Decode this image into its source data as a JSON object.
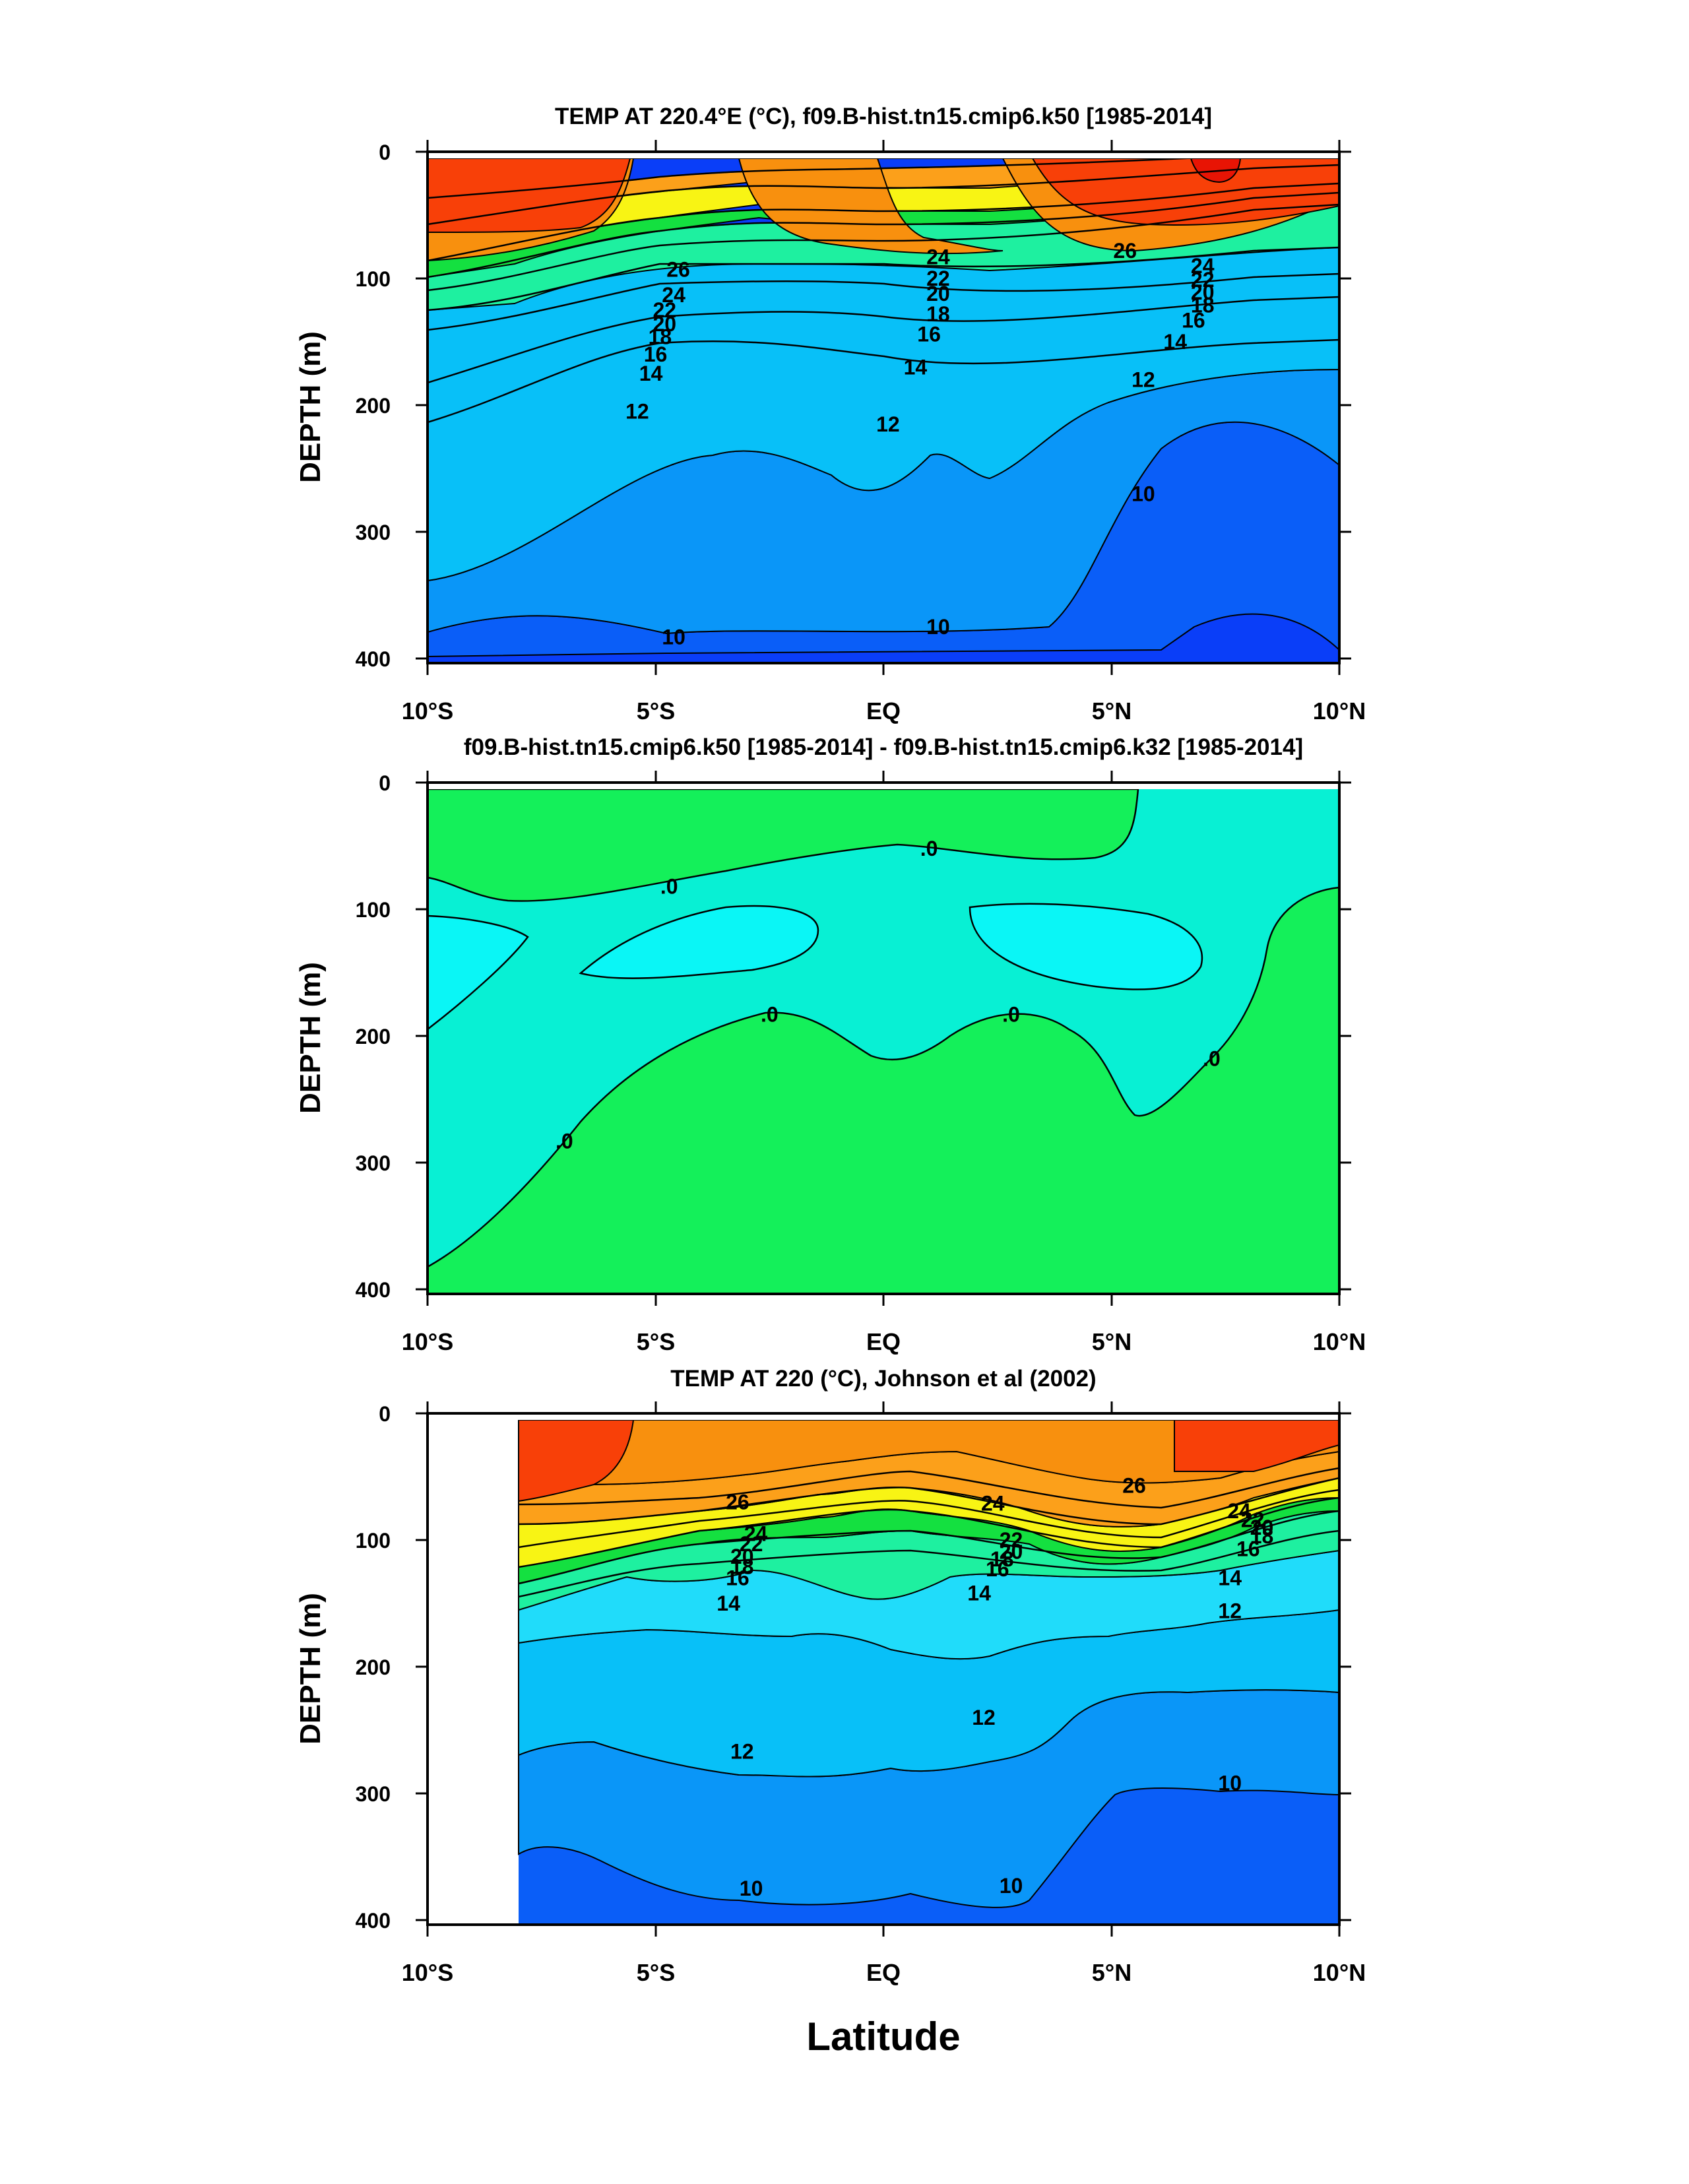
{
  "figure": {
    "xlabel": "Latitude",
    "colors": {
      "c_le10": "#0a3ef8",
      "c_10": "#0a5ef8",
      "c_11": "#0a96f8",
      "c_12": "#08c0f8",
      "c_13": "#20dcfa",
      "c_14": "#4ef0f0",
      "c_16": "#1ef0a0",
      "c_18": "#14e040",
      "c_20": "#c0f020",
      "c_22": "#f8f414",
      "c_23": "#fcd20e",
      "c_24": "#fca01a",
      "c_26": "#f8900e",
      "c_27": "#f86e0a",
      "c_28": "#f84008",
      "c_29": "#e81404",
      "diff_pos": "#14f05a",
      "diff_neg": "#08f0d4",
      "diff_neg2": "#0af6f6"
    }
  },
  "chart_data": [
    {
      "type": "contour",
      "title": "TEMP AT 220.4°E (°C), f09.B-hist.tn15.cmip6.k50 [1985-2014]",
      "ylabel": "DEPTH (m)",
      "xlabel": "",
      "x_ticks": [
        "10°S",
        "5°S",
        "EQ",
        "5°N",
        "10°N"
      ],
      "y_ticks": [
        "0",
        "100",
        "200",
        "300",
        "400"
      ],
      "xlim": [
        -10,
        10
      ],
      "ylim": [
        400,
        0
      ],
      "contour_labels": [
        {
          "text": "26",
          "lat": -4.5,
          "depth": 93
        },
        {
          "text": "24",
          "lat": -4.6,
          "depth": 113
        },
        {
          "text": "22",
          "lat": -4.8,
          "depth": 125
        },
        {
          "text": "20",
          "lat": -4.8,
          "depth": 136
        },
        {
          "text": "18",
          "lat": -4.9,
          "depth": 146
        },
        {
          "text": "16",
          "lat": -5.0,
          "depth": 160
        },
        {
          "text": "14",
          "lat": -5.1,
          "depth": 175
        },
        {
          "text": "12",
          "lat": -5.4,
          "depth": 205
        },
        {
          "text": "24",
          "lat": 1.2,
          "depth": 83
        },
        {
          "text": "22",
          "lat": 1.2,
          "depth": 100
        },
        {
          "text": "20",
          "lat": 1.2,
          "depth": 112
        },
        {
          "text": "18",
          "lat": 1.2,
          "depth": 128
        },
        {
          "text": "16",
          "lat": 1.0,
          "depth": 144
        },
        {
          "text": "14",
          "lat": 0.7,
          "depth": 170
        },
        {
          "text": "12",
          "lat": 0.1,
          "depth": 215
        },
        {
          "text": "26",
          "lat": 5.3,
          "depth": 78
        },
        {
          "text": "24",
          "lat": 7.0,
          "depth": 90
        },
        {
          "text": "22",
          "lat": 7.0,
          "depth": 101
        },
        {
          "text": "20",
          "lat": 7.0,
          "depth": 111
        },
        {
          "text": "18",
          "lat": 7.0,
          "depth": 121
        },
        {
          "text": "16",
          "lat": 6.8,
          "depth": 133
        },
        {
          "text": "14",
          "lat": 6.4,
          "depth": 150
        },
        {
          "text": "12",
          "lat": 5.7,
          "depth": 180
        },
        {
          "text": "10",
          "lat": 5.7,
          "depth": 270
        },
        {
          "text": "10",
          "lat": -4.6,
          "depth": 383
        },
        {
          "text": "10",
          "lat": 1.2,
          "depth": 375
        }
      ]
    },
    {
      "type": "contour",
      "title": "f09.B-hist.tn15.cmip6.k50 [1985-2014] - f09.B-hist.tn15.cmip6.k32 [1985-2014]",
      "ylabel": "DEPTH (m)",
      "xlabel": "",
      "x_ticks": [
        "10°S",
        "5°S",
        "EQ",
        "5°N",
        "10°N"
      ],
      "y_ticks": [
        "0",
        "100",
        "200",
        "300",
        "400"
      ],
      "xlim": [
        -10,
        10
      ],
      "ylim": [
        400,
        0
      ],
      "contour_labels": [
        {
          "text": ".0",
          "lat": 1.0,
          "depth": 52
        },
        {
          "text": ".0",
          "lat": -4.7,
          "depth": 82
        },
        {
          "text": ".0",
          "lat": -2.5,
          "depth": 183
        },
        {
          "text": ".0",
          "lat": 2.8,
          "depth": 183
        },
        {
          "text": ".0",
          "lat": 7.2,
          "depth": 218
        },
        {
          "text": ".0",
          "lat": -7.0,
          "depth": 283
        }
      ]
    },
    {
      "type": "contour",
      "title": "TEMP AT 220 (°C), Johnson et al (2002)",
      "ylabel": "DEPTH (m)",
      "xlabel": "Latitude",
      "x_ticks": [
        "10°S",
        "5°S",
        "EQ",
        "5°N",
        "10°N"
      ],
      "y_ticks": [
        "0",
        "100",
        "200",
        "300",
        "400"
      ],
      "xlim": [
        -10,
        10
      ],
      "ylim": [
        400,
        0
      ],
      "contour_labels": [
        {
          "text": "26",
          "lat": -3.2,
          "depth": 70
        },
        {
          "text": "24",
          "lat": -2.8,
          "depth": 95
        },
        {
          "text": "22",
          "lat": -2.9,
          "depth": 103
        },
        {
          "text": "20",
          "lat": -3.1,
          "depth": 113
        },
        {
          "text": "18",
          "lat": -3.1,
          "depth": 121
        },
        {
          "text": "16",
          "lat": -3.2,
          "depth": 130
        },
        {
          "text": "14",
          "lat": -3.4,
          "depth": 150
        },
        {
          "text": "24",
          "lat": 2.4,
          "depth": 71
        },
        {
          "text": "22",
          "lat": 2.8,
          "depth": 100
        },
        {
          "text": "20",
          "lat": 2.8,
          "depth": 109
        },
        {
          "text": "18",
          "lat": 2.6,
          "depth": 115
        },
        {
          "text": "16",
          "lat": 2.5,
          "depth": 123
        },
        {
          "text": "14",
          "lat": 2.1,
          "depth": 142
        },
        {
          "text": "26",
          "lat": 5.5,
          "depth": 57
        },
        {
          "text": "24",
          "lat": 7.8,
          "depth": 77
        },
        {
          "text": "22",
          "lat": 8.1,
          "depth": 84
        },
        {
          "text": "20",
          "lat": 8.3,
          "depth": 90
        },
        {
          "text": "18",
          "lat": 8.3,
          "depth": 97
        },
        {
          "text": "16",
          "lat": 8.0,
          "depth": 107
        },
        {
          "text": "14",
          "lat": 7.6,
          "depth": 130
        },
        {
          "text": "12",
          "lat": 7.6,
          "depth": 156
        },
        {
          "text": "12",
          "lat": 2.2,
          "depth": 240
        },
        {
          "text": "12",
          "lat": -3.1,
          "depth": 267
        },
        {
          "text": "10",
          "lat": 7.6,
          "depth": 292
        },
        {
          "text": "10",
          "lat": -2.9,
          "depth": 375
        },
        {
          "text": "10",
          "lat": 2.8,
          "depth": 373
        }
      ]
    }
  ]
}
